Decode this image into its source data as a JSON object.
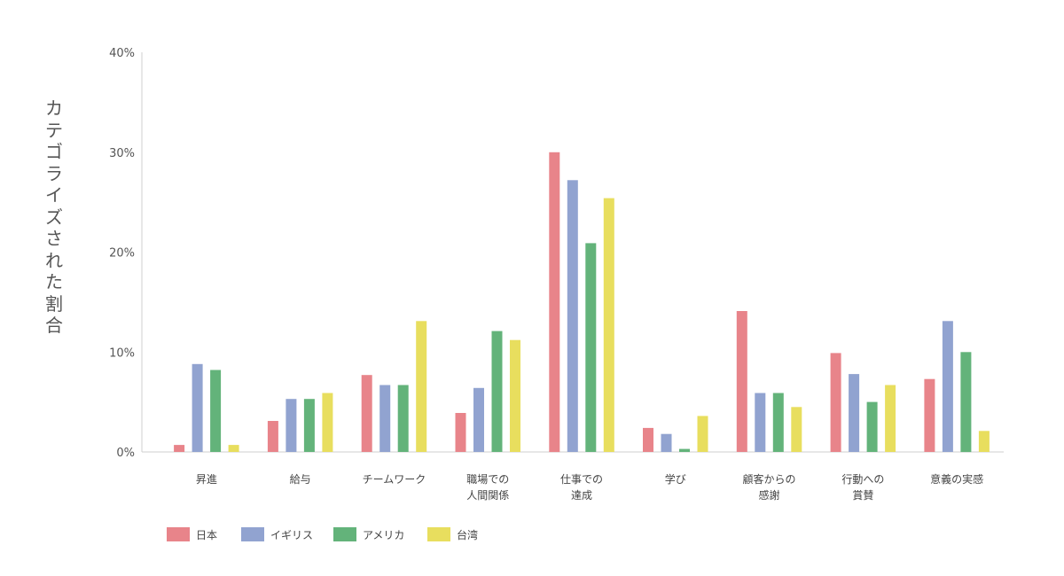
{
  "chart_data": {
    "type": "bar",
    "ylabel": "カテゴライズされた割合",
    "ylim": [
      0,
      40
    ],
    "yticks": [
      "0%",
      "10%",
      "20%",
      "30%",
      "40%"
    ],
    "grid": false,
    "legend_position": "bottom-left",
    "categories": [
      [
        "昇進"
      ],
      [
        "給与"
      ],
      [
        "チームワーク"
      ],
      [
        "職場での",
        "人間関係"
      ],
      [
        "仕事での",
        "達成"
      ],
      [
        "学び"
      ],
      [
        "顧客からの",
        "感謝"
      ],
      [
        "行動への",
        "賞賛"
      ],
      [
        "意義の実感"
      ]
    ],
    "series": [
      {
        "name": "日本",
        "color": "#e8848a",
        "values": [
          0.7,
          3.1,
          7.7,
          3.9,
          30.0,
          2.4,
          14.1,
          9.9,
          7.3
        ]
      },
      {
        "name": "イギリス",
        "color": "#91a3d0",
        "values": [
          8.8,
          5.3,
          6.7,
          6.4,
          27.2,
          1.8,
          5.9,
          7.8,
          13.1
        ]
      },
      {
        "name": "アメリカ",
        "color": "#63b37a",
        "values": [
          8.2,
          5.3,
          6.7,
          12.1,
          20.9,
          0.3,
          5.9,
          5.0,
          10.0
        ]
      },
      {
        "name": "台湾",
        "color": "#e8de5e",
        "values": [
          0.7,
          5.9,
          13.1,
          11.2,
          25.4,
          3.6,
          4.5,
          6.7,
          2.1
        ]
      }
    ]
  }
}
